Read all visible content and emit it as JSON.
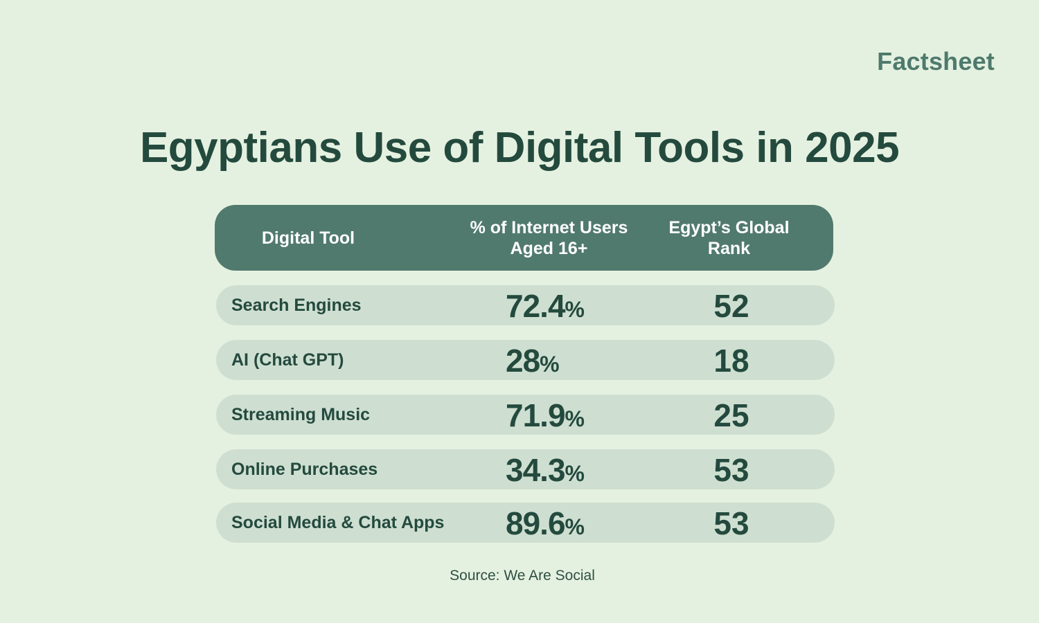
{
  "brand": "Factsheet",
  "title": "Egyptians Use of Digital Tools in 2025",
  "table": {
    "headers": [
      "Digital Tool",
      "% of Internet Users Aged 16+",
      "Egypt’s Global Rank"
    ],
    "header_lines": {
      "col1": "Digital Tool",
      "col2_line1": "% of Internet Users",
      "col2_line2": "Aged 16+",
      "col3_line1": "Egypt’s Global",
      "col3_line2": "Rank"
    },
    "rows": [
      {
        "tool": "Search Engines",
        "value": "72.4",
        "unit": "%",
        "rank": "52"
      },
      {
        "tool": "AI (Chat GPT)",
        "value": "28",
        "unit": "%",
        "rank": "18"
      },
      {
        "tool": "Streaming Music",
        "value": "71.9",
        "unit": "%",
        "rank": "25"
      },
      {
        "tool": "Online Purchases",
        "value": "34.3",
        "unit": "%",
        "rank": "53"
      },
      {
        "tool": "Social Media & Chat Apps",
        "value": "89.6",
        "unit": "%",
        "rank": "53"
      }
    ]
  },
  "source": "Source: We Are Social",
  "colors": {
    "background": "#e5f1e0",
    "header_bg": "#517a6e",
    "row_bg": "#cedfd1",
    "text": "#244a3e",
    "brand": "#4e7a6d"
  },
  "chart_data": {
    "type": "table",
    "title": "Egyptians Use of Digital Tools in 2025",
    "columns": [
      "Digital Tool",
      "% of Internet Users Aged 16+",
      "Egypt’s Global Rank"
    ],
    "rows": [
      [
        "Search Engines",
        72.4,
        52
      ],
      [
        "AI (Chat GPT)",
        28,
        18
      ],
      [
        "Streaming Music",
        71.9,
        25
      ],
      [
        "Online Purchases",
        34.3,
        53
      ],
      [
        "Social Media & Chat Apps",
        89.6,
        53
      ]
    ]
  }
}
